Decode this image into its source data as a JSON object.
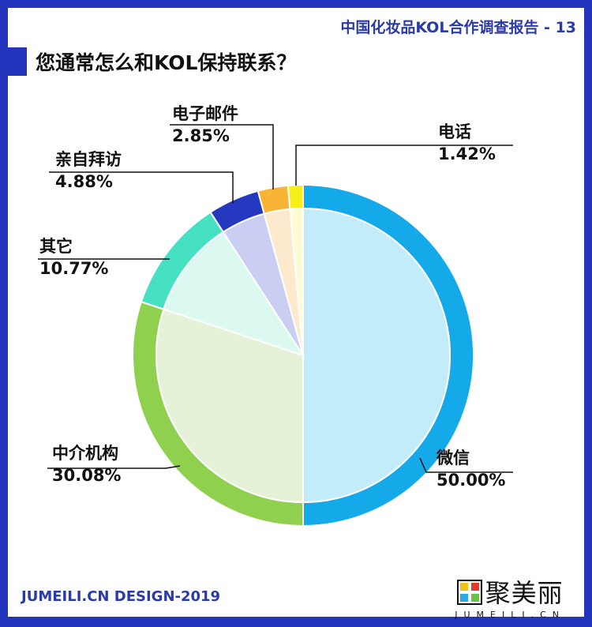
{
  "header": {
    "report_title": "中国化妆品KOL合作调查报告 - 13",
    "question": "您通常怎么和KOL保持联系？"
  },
  "footer": {
    "credit": "JUMEILI.CN DESIGN-2019",
    "logo_cn": "聚美丽",
    "logo_en": "JUMEILI.CN"
  },
  "chart_data": {
    "type": "pie",
    "title": "您通常怎么和KOL保持联系？",
    "slices": [
      {
        "label": "微信",
        "value": 50.0,
        "display": "50.00%",
        "color": "#14a9e9",
        "inner": "#c3ecfa"
      },
      {
        "label": "中介机构",
        "value": 30.08,
        "display": "30.08%",
        "color": "#8fd04f",
        "inner": "#e5f2d8"
      },
      {
        "label": "其它",
        "value": 10.77,
        "display": "10.77%",
        "color": "#46e0c3",
        "inner": "#dbf8f1"
      },
      {
        "label": "亲自拜访",
        "value": 4.88,
        "display": "4.88%",
        "color": "#2538c0",
        "inner": "#c9cef2"
      },
      {
        "label": "电子邮件",
        "value": 2.85,
        "display": "2.85%",
        "color": "#f8b535",
        "inner": "#fde9cd"
      },
      {
        "label": "电话",
        "value": 1.42,
        "display": "1.42%",
        "color": "#f8ef1a",
        "inner": "#fdfbd3"
      }
    ],
    "start": "top",
    "direction": "clockwise"
  }
}
